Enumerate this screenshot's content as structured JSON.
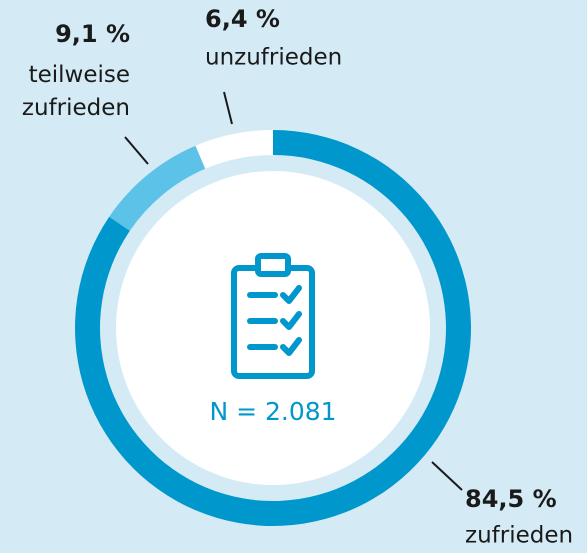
{
  "chart_data": {
    "type": "donut",
    "categories": [
      "zufrieden",
      "teilweise zufrieden",
      "unzufrieden"
    ],
    "values": [
      84.5,
      9.1,
      6.4
    ],
    "value_labels": [
      "84,5 %",
      "9,1 %",
      "6,4 %"
    ],
    "colors": [
      "#0098cc",
      "#5dc2e8",
      "#ffffff"
    ],
    "annotation": "N = 2.081"
  }
}
